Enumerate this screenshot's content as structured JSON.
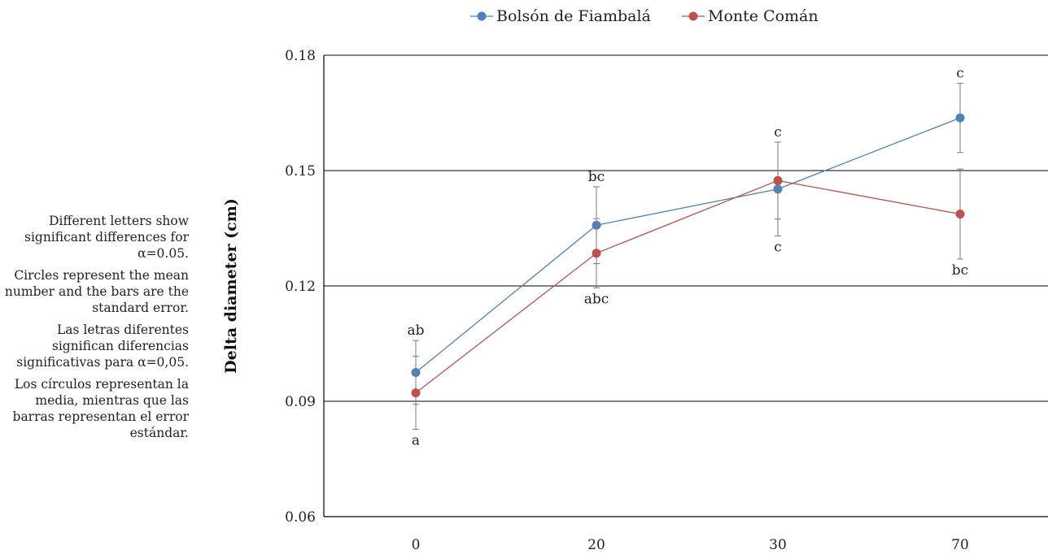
{
  "chart_data": {
    "type": "line",
    "title": "",
    "xlabel": "",
    "ylabel": "Delta diameter (cm)",
    "categories": [
      "0",
      "20",
      "30",
      "70"
    ],
    "ylim": [
      0.06,
      0.18
    ],
    "yticks": [
      "0.06",
      "0.09",
      "0.12",
      "0.15",
      "0.18"
    ],
    "grid": "horizontal",
    "legend": "top",
    "series": [
      {
        "name": "Bolsón de Fiambalá",
        "color": "#4f81bd",
        "values": [
          0.0975,
          0.1358,
          0.1452,
          0.1637
        ],
        "errors": [
          0.0083,
          0.01,
          0.0122,
          0.009
        ],
        "letters": [
          "ab",
          "bc",
          "c",
          "c"
        ],
        "letter_position": [
          "above",
          "above",
          "below",
          "above"
        ]
      },
      {
        "name": "Monte Comán",
        "color": "#c0504d",
        "values": [
          0.0922,
          0.1285,
          0.1474,
          0.1387
        ],
        "errors": [
          0.0095,
          0.009,
          0.01,
          0.0117
        ],
        "letters": [
          "a",
          "abc",
          "c",
          "bc"
        ],
        "letter_position": [
          "below",
          "below",
          "above",
          "below"
        ]
      }
    ]
  },
  "notes": [
    "Different letters show significant differences for α=0.05.",
    "Circles represent the mean number and the bars are the standard error.",
    "Las letras diferentes significan diferencias significativas para α=0,05.",
    "Los círculos representan la media, mientras que las barras representan el error estándar."
  ]
}
